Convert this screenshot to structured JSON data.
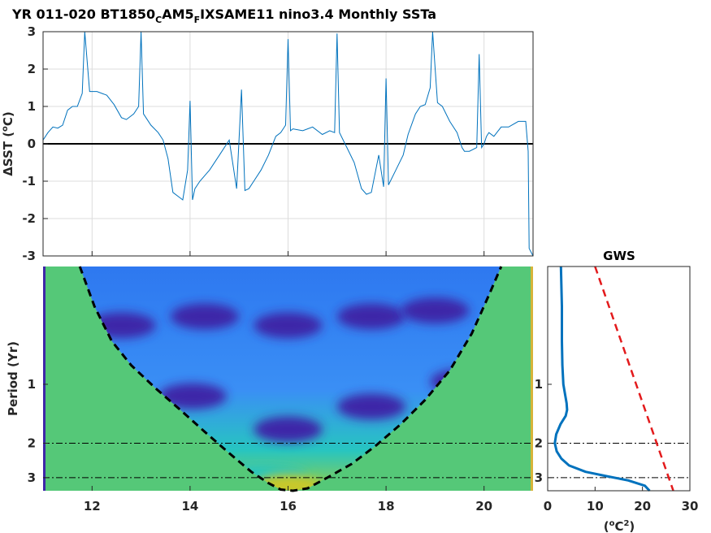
{
  "title": {
    "main_pre": "YR 011-020 BT1850",
    "sub1": "C",
    "main_mid": "AM5",
    "sub2": "F",
    "main_post": "IXSAME11 nino3.4 Monthly SSTa"
  },
  "colors": {
    "series": "#0072bd",
    "zero_line": "#000000",
    "outside_coi": "#55c878",
    "coi": "#000000",
    "significance": "#e31a1c",
    "wavelet_low": "#3e26a8",
    "wavelet_mid": "#2e78f0",
    "wavelet_high": "#27c5c0",
    "wavelet_peak": "#c8c82b"
  },
  "chart_data": [
    {
      "type": "line",
      "name": "sst_anomaly",
      "ylabel_pre": "ΔSST (",
      "ylabel_sup": "o",
      "ylabel_post": "C)",
      "xlim": [
        11,
        21
      ],
      "ylim": [
        -3,
        3
      ],
      "grid": true,
      "yticks": [
        "3",
        "2",
        "1",
        "0",
        "-1",
        "-2",
        "-3"
      ],
      "ytick_values": [
        3,
        2,
        1,
        0,
        -1,
        -2,
        -3
      ],
      "x": [
        11.0,
        11.1,
        11.2,
        11.3,
        11.4,
        11.5,
        11.6,
        11.7,
        11.8,
        11.85,
        11.95,
        12.1,
        12.3,
        12.45,
        12.6,
        12.7,
        12.85,
        12.95,
        13.0,
        13.05,
        13.2,
        13.35,
        13.45,
        13.55,
        13.65,
        13.75,
        13.85,
        13.95,
        14.0,
        14.05,
        14.1,
        14.2,
        14.4,
        14.6,
        14.8,
        14.95,
        15.05,
        15.12,
        15.2,
        15.3,
        15.45,
        15.6,
        15.75,
        15.85,
        15.95,
        16.0,
        16.05,
        16.1,
        16.3,
        16.5,
        16.7,
        16.85,
        16.95,
        17.0,
        17.05,
        17.2,
        17.35,
        17.5,
        17.6,
        17.7,
        17.85,
        17.95,
        18.0,
        18.05,
        18.2,
        18.35,
        18.45,
        18.6,
        18.7,
        18.8,
        18.9,
        18.95,
        19.05,
        19.15,
        19.3,
        19.45,
        19.55,
        19.6,
        19.7,
        19.85,
        19.9,
        19.95,
        20.0,
        20.05,
        20.1,
        20.2,
        20.35,
        20.5,
        20.7,
        20.85,
        20.9,
        20.92,
        21.0
      ],
      "y": [
        0.1,
        0.3,
        0.45,
        0.42,
        0.5,
        0.9,
        1.0,
        1.0,
        1.35,
        3.0,
        1.4,
        1.4,
        1.3,
        1.05,
        0.7,
        0.65,
        0.8,
        1.0,
        3.0,
        0.8,
        0.5,
        0.3,
        0.1,
        -0.4,
        -1.3,
        -1.4,
        -1.5,
        -0.7,
        1.15,
        -1.5,
        -1.2,
        -1.0,
        -0.7,
        -0.3,
        0.1,
        -1.2,
        1.45,
        -1.25,
        -1.2,
        -1.0,
        -0.7,
        -0.3,
        0.2,
        0.3,
        0.5,
        2.8,
        0.35,
        0.4,
        0.35,
        0.45,
        0.25,
        0.35,
        0.3,
        2.95,
        0.3,
        -0.1,
        -0.5,
        -1.2,
        -1.35,
        -1.3,
        -0.3,
        -1.15,
        1.75,
        -1.1,
        -0.7,
        -0.3,
        0.25,
        0.8,
        1.0,
        1.05,
        1.5,
        3.0,
        1.1,
        1.0,
        0.6,
        0.3,
        -0.1,
        -0.2,
        -0.2,
        -0.1,
        2.4,
        -0.1,
        0.0,
        0.2,
        0.3,
        0.2,
        0.45,
        0.45,
        0.6,
        0.6,
        -0.2,
        -2.8,
        -3.0
      ]
    },
    {
      "type": "heatmap",
      "name": "wavelet_power",
      "ylabel": "Period (Yr)",
      "xlim": [
        11,
        21
      ],
      "xticks": [
        "12",
        "14",
        "16",
        "18",
        "20"
      ],
      "xtick_values": [
        12,
        14,
        16,
        18,
        20
      ],
      "ylim_period": [
        0.25,
        3.5
      ],
      "yticks": [
        "1",
        "2",
        "3"
      ],
      "ytick_values": [
        1,
        2,
        3
      ],
      "reference_periods": [
        2,
        3
      ],
      "cone_of_influence_x": [
        11.75,
        12.05,
        12.4,
        12.8,
        13.3,
        13.8,
        14.3,
        14.8,
        15.25,
        15.6,
        15.85,
        16.1,
        16.4,
        16.8,
        17.3,
        17.8,
        18.3,
        18.8,
        19.3,
        19.75,
        20.1,
        20.35
      ],
      "cone_of_influence_period": [
        0.25,
        0.4,
        0.6,
        0.8,
        1.05,
        1.35,
        1.75,
        2.25,
        2.8,
        3.2,
        3.45,
        3.5,
        3.4,
        3.0,
        2.55,
        2.05,
        1.6,
        1.2,
        0.85,
        0.55,
        0.35,
        0.25
      ],
      "power_blobs": [
        {
          "x": 12.6,
          "period": 0.5,
          "level": "low"
        },
        {
          "x": 14.3,
          "period": 0.45,
          "level": "low"
        },
        {
          "x": 16.0,
          "period": 0.5,
          "level": "low"
        },
        {
          "x": 17.7,
          "period": 0.45,
          "level": "low"
        },
        {
          "x": 19.0,
          "period": 0.42,
          "level": "low"
        },
        {
          "x": 14.05,
          "period": 1.15,
          "level": "low"
        },
        {
          "x": 17.7,
          "period": 1.3,
          "level": "low"
        },
        {
          "x": 16.0,
          "period": 1.7,
          "level": "low"
        },
        {
          "x": 19.6,
          "period": 0.97,
          "level": "low"
        },
        {
          "x": 15.5,
          "period": 2.9,
          "level": "high"
        },
        {
          "x": 16.0,
          "period": 3.3,
          "level": "peak"
        }
      ]
    },
    {
      "type": "line",
      "name": "global_wavelet_spectrum",
      "title": "GWS",
      "xlabel_pre": "(",
      "xlabel_sup1": "o",
      "xlabel_mid": "C",
      "xlabel_sup2": "2",
      "xlabel_post": ")",
      "xlim": [
        0,
        30
      ],
      "xticks": [
        "0",
        "10",
        "20",
        "30"
      ],
      "xtick_values": [
        0,
        10,
        20,
        30
      ],
      "yticks": [
        "1",
        "2",
        "3"
      ],
      "ytick_values": [
        1,
        2,
        3
      ],
      "reference_periods": [
        2,
        3
      ],
      "series": [
        {
          "key": "power",
          "style": "solid",
          "period": [
            0.25,
            0.4,
            0.6,
            0.8,
            1.0,
            1.1,
            1.25,
            1.35,
            1.45,
            1.6,
            1.8,
            2.0,
            2.2,
            2.4,
            2.6,
            2.8,
            2.95,
            3.1,
            3.3,
            3.5
          ],
          "power": [
            2.8,
            3.0,
            3.0,
            3.1,
            3.3,
            3.6,
            4.0,
            4.1,
            3.8,
            2.7,
            1.8,
            1.5,
            1.9,
            2.9,
            4.5,
            8.0,
            12.5,
            17.0,
            20.5,
            21.5
          ]
        },
        {
          "key": "significance",
          "style": "dashed",
          "period": [
            0.25,
            3.5
          ],
          "power": [
            10.0,
            26.5
          ]
        }
      ]
    }
  ]
}
